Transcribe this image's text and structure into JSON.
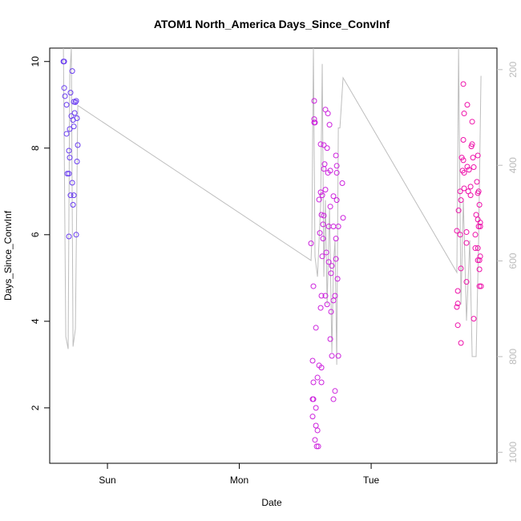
{
  "chart_data": {
    "type": "scatter",
    "title": "ATOM1 North_America Days_Since_ConvInf",
    "x_label": "Date",
    "y_label": "Days_Since_ConvInf",
    "xlim": [
      -0.438,
      2.954
    ],
    "xticks": [
      {
        "value": 0,
        "label": "Sun"
      },
      {
        "value": 1,
        "label": "Mon"
      },
      {
        "value": 2,
        "label": "Tue"
      }
    ],
    "ylim": [
      0.72,
      10.31
    ],
    "yticks": [
      2,
      4,
      6,
      8,
      10
    ],
    "y2lim": [
      1023,
      155
    ],
    "y2ticks": [
      200,
      400,
      600,
      800,
      1000
    ],
    "series": [
      {
        "color": "#6a3df0",
        "x": [
          -0.334,
          -0.328,
          -0.328,
          -0.322,
          -0.31,
          -0.28,
          -0.267,
          -0.255,
          -0.243,
          -0.237,
          -0.249,
          -0.261,
          -0.274,
          -0.31,
          -0.286,
          -0.231,
          -0.255,
          -0.292,
          -0.225,
          -0.286,
          -0.304,
          -0.292,
          -0.231,
          -0.267,
          -0.28,
          -0.255,
          -0.261,
          -0.292,
          -0.237
        ],
        "values": [
          10,
          10,
          9.39,
          9.2,
          9.0,
          9.28,
          9.78,
          9.07,
          9.06,
          9.09,
          8.81,
          8.65,
          8.74,
          8.33,
          8.44,
          8.69,
          8.5,
          7.94,
          8.07,
          7.78,
          7.41,
          7.41,
          7.69,
          7.2,
          6.91,
          6.91,
          6.69,
          5.96,
          6.0
        ]
      },
      {
        "color": "#cc22dd",
        "x": [
          1.568,
          1.568,
          1.568,
          1.574,
          1.617,
          1.653,
          1.672,
          1.684,
          1.641,
          1.666,
          1.647,
          1.641,
          1.672,
          1.69,
          1.739,
          1.739,
          1.733,
          1.617,
          1.629,
          1.605,
          1.653,
          1.714,
          1.739,
          1.781,
          1.623,
          1.641,
          1.69,
          1.787,
          1.635,
          1.678,
          1.714,
          1.751,
          1.611,
          1.635,
          1.733,
          1.544,
          1.66,
          1.733,
          1.629,
          1.678,
          1.702,
          1.562,
          1.745,
          1.696,
          1.623,
          1.653,
          1.726,
          1.714,
          1.666,
          1.617,
          1.696,
          1.581,
          1.69,
          1.702,
          1.751,
          1.556,
          1.605,
          1.623,
          1.593,
          1.562,
          1.623,
          1.726,
          1.714,
          1.556,
          1.562,
          1.581,
          1.556,
          1.581,
          1.593,
          1.574,
          1.587,
          1.599
        ],
        "values": [
          9.09,
          8.67,
          8.59,
          8.59,
          8.09,
          8.89,
          8.8,
          8.54,
          8.07,
          8.0,
          7.63,
          7.52,
          7.43,
          7.48,
          7.43,
          7.59,
          7.83,
          6.98,
          6.91,
          6.81,
          7.04,
          6.89,
          6.8,
          7.19,
          6.46,
          6.44,
          6.65,
          6.39,
          6.24,
          6.19,
          6.19,
          6.19,
          6.04,
          5.91,
          5.91,
          5.8,
          5.59,
          5.44,
          5.5,
          5.37,
          5.28,
          4.81,
          4.98,
          5.11,
          4.59,
          4.59,
          4.59,
          4.48,
          4.39,
          4.31,
          4.22,
          3.85,
          3.59,
          3.2,
          3.2,
          3.09,
          2.98,
          2.93,
          2.7,
          2.59,
          2.59,
          2.39,
          2.2,
          2.2,
          2.2,
          2.0,
          1.8,
          1.59,
          1.48,
          1.26,
          1.11,
          1.11
        ]
      },
      {
        "color": "#ee11aa",
        "x": [
          2.699,
          2.729,
          2.705,
          2.766,
          2.699,
          2.766,
          2.76,
          2.809,
          2.687,
          2.772,
          2.699,
          2.729,
          2.693,
          2.705,
          2.742,
          2.778,
          2.802,
          2.754,
          2.705,
          2.675,
          2.736,
          2.815,
          2.809,
          2.754,
          2.681,
          2.821,
          2.663,
          2.796,
          2.809,
          2.827,
          2.815,
          2.827,
          2.65,
          2.723,
          2.675,
          2.79,
          2.723,
          2.79,
          2.809,
          2.821,
          2.809,
          2.827,
          2.681,
          2.821,
          2.821,
          2.833,
          2.723,
          2.657,
          2.657,
          2.65,
          2.778,
          2.657,
          2.681
        ],
        "values": [
          9.48,
          9.0,
          8.8,
          8.61,
          8.19,
          8.09,
          8.04,
          7.83,
          7.78,
          7.78,
          7.72,
          7.57,
          7.48,
          7.43,
          7.5,
          7.56,
          7.22,
          7.11,
          7.07,
          7.0,
          7.0,
          7.0,
          6.96,
          6.91,
          6.8,
          6.69,
          6.56,
          6.46,
          6.35,
          6.28,
          6.19,
          6.19,
          6.09,
          6.06,
          6.0,
          6.0,
          5.81,
          5.69,
          5.69,
          5.41,
          5.41,
          5.5,
          5.22,
          5.2,
          4.81,
          4.81,
          4.91,
          4.7,
          4.41,
          4.33,
          4.06,
          3.91,
          3.5
        ]
      },
      {
        "type": "line",
        "axis": "y2",
        "color": "#bebebe",
        "x": [
          -0.334,
          -0.316,
          -0.298,
          -0.286,
          -0.274,
          -0.261,
          -0.243,
          -0.225,
          1.544,
          1.55,
          1.562,
          1.574,
          1.593,
          1.617,
          1.629,
          1.641,
          1.653,
          1.666,
          1.684,
          1.702,
          1.714,
          1.726,
          1.739,
          1.751,
          1.763,
          1.787,
          2.65,
          2.663,
          2.681,
          2.699,
          2.723,
          2.748,
          2.766,
          2.796,
          2.815,
          2.833
        ],
        "values": [
          155,
          758,
          784,
          213,
          155,
          779,
          742,
          275,
          599,
          557,
          155,
          591,
          633,
          482,
          188,
          633,
          473,
          691,
          490,
          792,
          608,
          557,
          817,
          322,
          322,
          217,
          624,
          155,
          691,
          473,
          725,
          557,
          800,
          800,
          557,
          213
        ]
      }
    ]
  }
}
